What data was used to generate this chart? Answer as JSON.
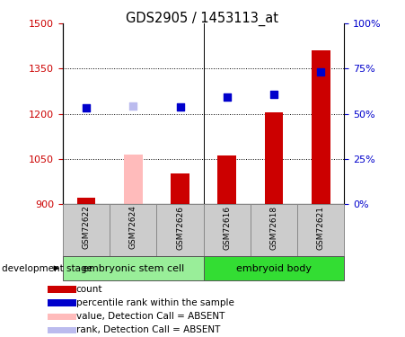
{
  "title": "GDS2905 / 1453113_at",
  "samples": [
    "GSM72622",
    "GSM72624",
    "GSM72626",
    "GSM72616",
    "GSM72618",
    "GSM72621"
  ],
  "bar_values": [
    920,
    1065,
    1000,
    1060,
    1205,
    1410
  ],
  "bar_colors": [
    "#cc0000",
    "#ffbbbb",
    "#cc0000",
    "#cc0000",
    "#cc0000",
    "#cc0000"
  ],
  "dot_values": [
    1220,
    1225,
    1222,
    1255,
    1265,
    1340
  ],
  "dot_colors": [
    "#0000cc",
    "#bbbbee",
    "#0000cc",
    "#0000cc",
    "#0000cc",
    "#0000cc"
  ],
  "absent_bar": [
    false,
    true,
    false,
    false,
    false,
    false
  ],
  "absent_dot": [
    false,
    true,
    false,
    false,
    false,
    false
  ],
  "ymin": 900,
  "ymax": 1500,
  "yticks": [
    900,
    1050,
    1200,
    1350,
    1500
  ],
  "right_yticks": [
    0,
    25,
    50,
    75,
    100
  ],
  "group1_label": "embryonic stem cell",
  "group2_label": "embryoid body",
  "group1_color": "#99ee99",
  "group2_color": "#33dd33",
  "tick_color_left": "#cc0000",
  "tick_color_right": "#0000cc",
  "bar_base": 900,
  "legend": [
    {
      "color": "#cc0000",
      "label": "count"
    },
    {
      "color": "#0000cc",
      "label": "percentile rank within the sample"
    },
    {
      "color": "#ffbbbb",
      "label": "value, Detection Call = ABSENT"
    },
    {
      "color": "#bbbbee",
      "label": "rank, Detection Call = ABSENT"
    }
  ]
}
